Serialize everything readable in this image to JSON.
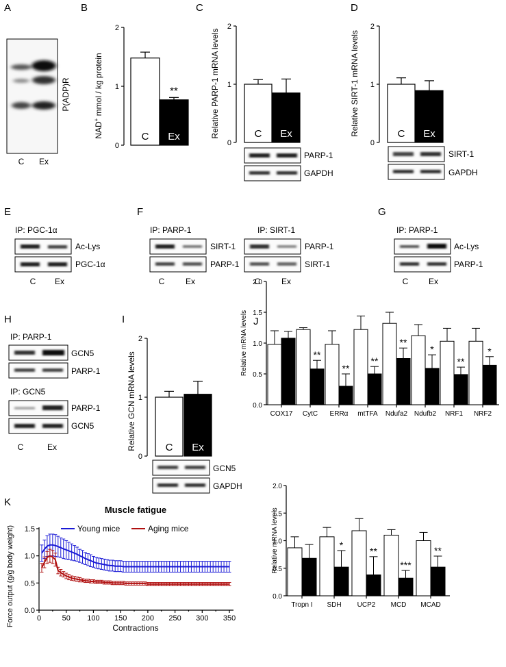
{
  "panels": {
    "A": {
      "label": "A",
      "blot_label": "P(ADP)R",
      "lanes": [
        "C",
        "Ex"
      ]
    },
    "B": {
      "label": "B",
      "ylabel_pre": "NAD",
      "ylabel_sup": "+",
      "ylabel_post": " mmol / kg protein",
      "sig": "**"
    },
    "C": {
      "label": "C",
      "ylabel": "Relative PARP-1 mRNA levels",
      "blots": [
        "PARP-1",
        "GAPDH"
      ]
    },
    "D": {
      "label": "D",
      "ylabel": "Relative SIRT-1 mRNA levels",
      "blots": [
        "SIRT-1",
        "GAPDH"
      ]
    },
    "E": {
      "label": "E",
      "ip": "IP: PGC-1α",
      "blots": [
        "Ac-Lys",
        "PGC-1α"
      ],
      "lanes": [
        "C",
        "Ex"
      ]
    },
    "F": {
      "label": "F",
      "ip1": "IP: PARP-1",
      "blots1": [
        "SIRT-1",
        "PARP-1"
      ],
      "ip2": "IP: SIRT-1",
      "blots2": [
        "PARP-1",
        "SIRT-1"
      ],
      "lanes": [
        "C",
        "Ex"
      ]
    },
    "G": {
      "label": "G",
      "ip": "IP: PARP-1",
      "blots": [
        "Ac-Lys",
        "PARP-1"
      ],
      "lanes": [
        "C",
        "Ex"
      ]
    },
    "H": {
      "label": "H",
      "ip1": "IP: PARP-1",
      "blots1": [
        "GCN5",
        "PARP-1"
      ],
      "ip2": "IP: GCN5",
      "blots2": [
        "PARP-1",
        "GCN5"
      ],
      "lanes": [
        "C",
        "Ex"
      ]
    },
    "I": {
      "label": "I",
      "ylabel": "Relative GCN mRNA levels",
      "blots": [
        "GCN5",
        "GAPDH"
      ]
    },
    "J": {
      "label": "J"
    },
    "K": {
      "label": "K"
    }
  },
  "chart_data": [
    {
      "id": "B",
      "type": "bar",
      "categories": [
        "C",
        "Ex"
      ],
      "values": [
        1.48,
        0.77
      ],
      "errors": [
        0.1,
        0.04
      ],
      "ylim": [
        0,
        2
      ],
      "yticks": [
        0,
        1,
        2
      ],
      "ylabel": "NAD+ mmol / kg protein",
      "annotations": [
        "",
        "**"
      ]
    },
    {
      "id": "C",
      "type": "bar",
      "categories": [
        "C",
        "Ex"
      ],
      "values": [
        1.0,
        0.85
      ],
      "errors": [
        0.08,
        0.24
      ],
      "ylim": [
        0,
        2
      ],
      "yticks": [
        0,
        1,
        2
      ],
      "ylabel": "Relative PARP-1 mRNA levels"
    },
    {
      "id": "D",
      "type": "bar",
      "categories": [
        "C",
        "Ex"
      ],
      "values": [
        1.0,
        0.89
      ],
      "errors": [
        0.11,
        0.17
      ],
      "ylim": [
        0,
        2
      ],
      "yticks": [
        0,
        1,
        2
      ],
      "ylabel": "Relative SIRT-1 mRNA levels"
    },
    {
      "id": "I",
      "type": "bar",
      "categories": [
        "C",
        "Ex"
      ],
      "values": [
        1.0,
        1.05
      ],
      "errors": [
        0.1,
        0.22
      ],
      "ylim": [
        0,
        2
      ],
      "yticks": [
        0,
        1,
        2
      ],
      "ylabel": "Relative GCN mRNA levels"
    },
    {
      "id": "J1",
      "type": "bar",
      "ylabel": "Relative mRNA levels",
      "ylim": [
        0,
        2.0
      ],
      "yticks": [
        "0.0",
        "0.5",
        "1.0",
        "1.5",
        "2.0"
      ],
      "categories": [
        "COX17",
        "CytC",
        "ERRα",
        "mtTFA",
        "Ndufa2",
        "Ndufb2",
        "NRF1",
        "NRF2"
      ],
      "series": [
        {
          "name": "C",
          "values": [
            0.98,
            1.22,
            0.98,
            1.22,
            1.32,
            1.12,
            1.03,
            1.03
          ],
          "errors": [
            0.22,
            0.03,
            0.22,
            0.22,
            0.18,
            0.18,
            0.21,
            0.21
          ]
        },
        {
          "name": "Ex",
          "values": [
            1.08,
            0.58,
            0.3,
            0.5,
            0.75,
            0.59,
            0.49,
            0.64
          ],
          "errors": [
            0.11,
            0.14,
            0.2,
            0.12,
            0.17,
            0.22,
            0.12,
            0.14
          ]
        }
      ],
      "annotations": [
        "",
        "**",
        "**",
        "**",
        "**",
        "*",
        "**",
        "*"
      ]
    },
    {
      "id": "J2",
      "type": "bar",
      "ylabel": "Relative mRNA levels",
      "ylim": [
        0,
        2.0
      ],
      "yticks": [
        "0.0",
        "0.5",
        "1.0",
        "1.5",
        "2.0"
      ],
      "categories": [
        "Tropn I",
        "SDH",
        "UCP2",
        "MCD",
        "MCAD"
      ],
      "series": [
        {
          "name": "C",
          "values": [
            0.87,
            1.07,
            1.18,
            1.1,
            1.0
          ],
          "errors": [
            0.2,
            0.17,
            0.22,
            0.1,
            0.15
          ]
        },
        {
          "name": "Ex",
          "values": [
            0.68,
            0.52,
            0.38,
            0.32,
            0.52
          ],
          "errors": [
            0.25,
            0.3,
            0.33,
            0.14,
            0.2
          ]
        }
      ],
      "annotations": [
        "",
        "*",
        "**",
        "***",
        "**"
      ]
    },
    {
      "id": "K",
      "type": "line",
      "title": "Muscle fatigue",
      "xlabel": "Contractions",
      "ylabel": "Force output (g/g body weight)",
      "xlim": [
        0,
        355
      ],
      "ylim": [
        0,
        1.5
      ],
      "xticks": [
        0,
        50,
        100,
        150,
        200,
        250,
        300,
        350
      ],
      "yticks": [
        "0.0",
        "0.5",
        "1.0",
        "1.5"
      ],
      "x": [
        5,
        10,
        15,
        20,
        25,
        30,
        35,
        40,
        45,
        50,
        55,
        60,
        65,
        70,
        75,
        80,
        85,
        90,
        95,
        100,
        105,
        110,
        115,
        120,
        125,
        130,
        135,
        140,
        145,
        150,
        155,
        160,
        165,
        170,
        175,
        180,
        185,
        190,
        195,
        200,
        205,
        210,
        215,
        220,
        225,
        230,
        235,
        240,
        245,
        250,
        255,
        260,
        265,
        270,
        275,
        280,
        285,
        290,
        295,
        300,
        305,
        310,
        315,
        320,
        325,
        330,
        335,
        340,
        345,
        350
      ],
      "series": [
        {
          "name": "Young mice",
          "color": "#1a1ad6",
          "values": [
            1.05,
            1.12,
            1.18,
            1.2,
            1.2,
            1.19,
            1.17,
            1.15,
            1.13,
            1.11,
            1.09,
            1.07,
            1.05,
            1.03,
            1.0,
            0.98,
            0.95,
            0.93,
            0.91,
            0.89,
            0.87,
            0.86,
            0.85,
            0.84,
            0.83,
            0.82,
            0.82,
            0.81,
            0.81,
            0.81,
            0.8,
            0.8,
            0.8,
            0.8,
            0.8,
            0.8,
            0.8,
            0.8,
            0.8,
            0.8,
            0.8,
            0.8,
            0.8,
            0.8,
            0.8,
            0.8,
            0.8,
            0.8,
            0.8,
            0.8,
            0.8,
            0.8,
            0.8,
            0.8,
            0.8,
            0.8,
            0.8,
            0.8,
            0.8,
            0.8,
            0.8,
            0.8,
            0.8,
            0.8,
            0.8,
            0.8,
            0.8,
            0.8,
            0.8,
            0.8
          ],
          "errors": [
            0.15,
            0.17,
            0.19,
            0.2,
            0.2,
            0.2,
            0.19,
            0.18,
            0.18,
            0.17,
            0.16,
            0.15,
            0.14,
            0.13,
            0.12,
            0.12,
            0.11,
            0.11,
            0.11,
            0.1,
            0.1,
            0.1,
            0.1,
            0.1,
            0.1,
            0.1,
            0.1,
            0.1,
            0.1,
            0.1,
            0.1,
            0.1,
            0.1,
            0.1,
            0.1,
            0.1,
            0.1,
            0.1,
            0.1,
            0.1,
            0.1,
            0.1,
            0.1,
            0.1,
            0.1,
            0.1,
            0.1,
            0.1,
            0.1,
            0.1,
            0.1,
            0.1,
            0.1,
            0.1,
            0.1,
            0.1,
            0.1,
            0.1,
            0.1,
            0.1,
            0.1,
            0.1,
            0.1,
            0.1,
            0.1,
            0.1,
            0.1,
            0.1,
            0.1,
            0.1
          ]
        },
        {
          "name": "Aging mice",
          "color": "#b01010",
          "values": [
            0.78,
            0.88,
            0.97,
            1.0,
            0.98,
            0.93,
            0.73,
            0.69,
            0.66,
            0.63,
            0.61,
            0.59,
            0.58,
            0.57,
            0.56,
            0.55,
            0.54,
            0.54,
            0.53,
            0.53,
            0.52,
            0.52,
            0.52,
            0.51,
            0.51,
            0.51,
            0.5,
            0.5,
            0.5,
            0.5,
            0.5,
            0.49,
            0.49,
            0.49,
            0.49,
            0.49,
            0.49,
            0.49,
            0.49,
            0.48,
            0.48,
            0.48,
            0.48,
            0.48,
            0.48,
            0.48,
            0.48,
            0.48,
            0.48,
            0.48,
            0.48,
            0.48,
            0.48,
            0.48,
            0.48,
            0.48,
            0.48,
            0.48,
            0.48,
            0.48,
            0.48,
            0.48,
            0.48,
            0.48,
            0.48,
            0.48,
            0.48,
            0.48,
            0.48,
            0.48
          ],
          "errors": [
            0.08,
            0.1,
            0.11,
            0.12,
            0.12,
            0.12,
            0.06,
            0.06,
            0.05,
            0.05,
            0.05,
            0.04,
            0.04,
            0.04,
            0.04,
            0.03,
            0.03,
            0.03,
            0.03,
            0.03,
            0.03,
            0.03,
            0.03,
            0.03,
            0.03,
            0.03,
            0.03,
            0.03,
            0.03,
            0.03,
            0.03,
            0.03,
            0.03,
            0.03,
            0.03,
            0.03,
            0.03,
            0.03,
            0.03,
            0.03,
            0.03,
            0.03,
            0.03,
            0.03,
            0.03,
            0.03,
            0.03,
            0.03,
            0.03,
            0.03,
            0.03,
            0.03,
            0.03,
            0.03,
            0.03,
            0.03,
            0.03,
            0.03,
            0.03,
            0.03,
            0.03,
            0.03,
            0.03,
            0.03,
            0.03,
            0.03,
            0.03,
            0.03,
            0.03,
            0.03
          ]
        }
      ],
      "legend": [
        "Young mice",
        "Aging mice"
      ]
    }
  ]
}
